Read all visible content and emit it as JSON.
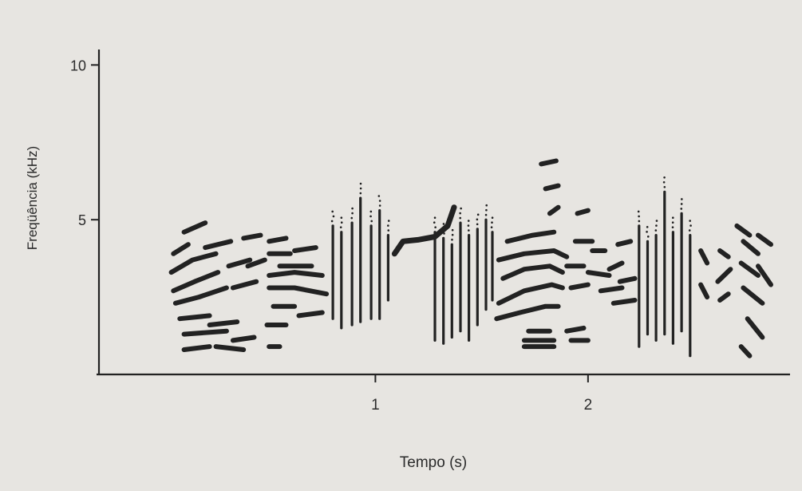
{
  "chart_data": {
    "type": "scatter",
    "title": "",
    "xlabel": "Tempo (s)",
    "ylabel": "Freqüência (kHz)",
    "xlim": [
      -0.3,
      2.95
    ],
    "ylim": [
      0,
      10.5
    ],
    "x_ticks": [
      {
        "value": 1,
        "label": "1"
      },
      {
        "value": 2,
        "label": "2"
      }
    ],
    "y_ticks": [
      {
        "value": 5,
        "label": "5"
      },
      {
        "value": 10,
        "label": "10"
      }
    ],
    "grid": false,
    "ink_color": "#222222",
    "background_color": "#e7e5e1",
    "series": [
      {
        "segments": [
          [
            [
              0.05,
              3.9
            ],
            [
              0.12,
              4.2
            ]
          ],
          [
            [
              0.04,
              3.3
            ],
            [
              0.14,
              3.7
            ],
            [
              0.25,
              3.9
            ]
          ],
          [
            [
              0.05,
              2.7
            ],
            [
              0.15,
              3.0
            ],
            [
              0.26,
              3.3
            ]
          ],
          [
            [
              0.06,
              2.3
            ],
            [
              0.17,
              2.5
            ],
            [
              0.3,
              2.8
            ]
          ],
          [
            [
              0.1,
              4.6
            ],
            [
              0.2,
              4.9
            ]
          ],
          [
            [
              0.2,
              4.1
            ],
            [
              0.32,
              4.3
            ]
          ],
          [
            [
              0.31,
              3.5
            ],
            [
              0.41,
              3.7
            ]
          ],
          [
            [
              0.33,
              2.8
            ],
            [
              0.44,
              3.0
            ]
          ],
          [
            [
              0.38,
              4.4
            ],
            [
              0.46,
              4.5
            ]
          ],
          [
            [
              0.4,
              3.5
            ],
            [
              0.48,
              3.7
            ]
          ],
          [
            [
              0.5,
              4.3
            ],
            [
              0.58,
              4.4
            ]
          ],
          [
            [
              0.5,
              3.9
            ],
            [
              0.6,
              3.9
            ]
          ],
          [
            [
              0.5,
              3.2
            ],
            [
              0.62,
              3.3
            ],
            [
              0.75,
              3.2
            ]
          ],
          [
            [
              0.5,
              2.8
            ],
            [
              0.62,
              2.8
            ],
            [
              0.77,
              2.6
            ]
          ],
          [
            [
              0.52,
              2.2
            ],
            [
              0.62,
              2.2
            ]
          ],
          [
            [
              0.55,
              3.5
            ],
            [
              0.7,
              3.5
            ]
          ],
          [
            [
              0.62,
              4.0
            ],
            [
              0.72,
              4.1
            ]
          ],
          [
            [
              0.64,
              1.9
            ],
            [
              0.75,
              2.0
            ]
          ],
          [
            [
              0.08,
              1.8
            ],
            [
              0.22,
              1.9
            ]
          ],
          [
            [
              0.1,
              1.3
            ],
            [
              0.3,
              1.4
            ]
          ],
          [
            [
              0.1,
              0.8
            ],
            [
              0.22,
              0.9
            ]
          ],
          [
            [
              0.22,
              1.6
            ],
            [
              0.35,
              1.7
            ]
          ],
          [
            [
              0.25,
              0.9
            ],
            [
              0.38,
              0.8
            ]
          ],
          [
            [
              0.33,
              1.1
            ],
            [
              0.43,
              1.2
            ]
          ],
          [
            [
              0.49,
              1.6
            ],
            [
              0.58,
              1.6
            ]
          ],
          [
            [
              0.5,
              0.9
            ],
            [
              0.55,
              0.9
            ]
          ]
        ]
      },
      {
        "segments": [
          [
            [
              0.8,
              4.8
            ],
            [
              0.8,
              1.8
            ]
          ],
          [
            [
              0.84,
              4.6
            ],
            [
              0.84,
              1.5
            ]
          ],
          [
            [
              0.89,
              4.9
            ],
            [
              0.89,
              1.6
            ]
          ],
          [
            [
              0.93,
              5.7
            ],
            [
              0.93,
              1.7
            ]
          ],
          [
            [
              0.98,
              4.8
            ],
            [
              0.98,
              1.8
            ]
          ],
          [
            [
              1.02,
              5.3
            ],
            [
              1.02,
              1.8
            ]
          ],
          [
            [
              1.06,
              4.5
            ],
            [
              1.06,
              2.4
            ]
          ]
        ]
      },
      {
        "segments": [
          [
            [
              1.09,
              3.9
            ],
            [
              1.13,
              4.3
            ],
            [
              1.2,
              4.35
            ],
            [
              1.28,
              4.45
            ],
            [
              1.34,
              4.8
            ],
            [
              1.37,
              5.4
            ]
          ]
        ]
      },
      {
        "segments": [
          [
            [
              1.28,
              4.6
            ],
            [
              1.28,
              1.1
            ]
          ],
          [
            [
              1.32,
              4.4
            ],
            [
              1.32,
              1.0
            ]
          ],
          [
            [
              1.36,
              4.2
            ],
            [
              1.36,
              1.2
            ]
          ],
          [
            [
              1.4,
              4.9
            ],
            [
              1.4,
              1.4
            ]
          ],
          [
            [
              1.44,
              4.5
            ],
            [
              1.44,
              1.1
            ]
          ],
          [
            [
              1.48,
              4.7
            ],
            [
              1.48,
              1.6
            ]
          ],
          [
            [
              1.52,
              5.0
            ],
            [
              1.52,
              2.1
            ]
          ],
          [
            [
              1.55,
              4.6
            ],
            [
              1.55,
              2.4
            ]
          ]
        ]
      },
      {
        "segments": [
          [
            [
              1.6,
              3.1
            ],
            [
              1.7,
              3.4
            ],
            [
              1.82,
              3.5
            ],
            [
              1.88,
              3.3
            ]
          ],
          [
            [
              1.58,
              3.7
            ],
            [
              1.7,
              3.9
            ],
            [
              1.84,
              4.0
            ],
            [
              1.9,
              3.8
            ]
          ],
          [
            [
              1.58,
              2.3
            ],
            [
              1.7,
              2.7
            ],
            [
              1.83,
              2.9
            ],
            [
              1.88,
              2.8
            ]
          ],
          [
            [
              1.57,
              1.8
            ],
            [
              1.68,
              2.0
            ],
            [
              1.8,
              2.2
            ],
            [
              1.86,
              2.2
            ]
          ],
          [
            [
              1.62,
              4.3
            ],
            [
              1.74,
              4.5
            ],
            [
              1.84,
              4.6
            ]
          ],
          [
            [
              1.9,
              3.5
            ],
            [
              1.98,
              3.5
            ]
          ],
          [
            [
              1.92,
              2.8
            ],
            [
              2.0,
              2.9
            ]
          ],
          [
            [
              1.94,
              4.3
            ],
            [
              2.02,
              4.3
            ]
          ],
          [
            [
              1.72,
              1.4
            ],
            [
              1.82,
              1.4
            ]
          ],
          [
            [
              1.7,
              0.9
            ],
            [
              1.84,
              0.9
            ]
          ],
          [
            [
              1.7,
              1.1
            ],
            [
              1.84,
              1.1
            ]
          ],
          [
            [
              1.78,
              6.8
            ],
            [
              1.85,
              6.9
            ]
          ],
          [
            [
              1.8,
              6.0
            ],
            [
              1.86,
              6.1
            ]
          ],
          [
            [
              1.82,
              5.2
            ],
            [
              1.86,
              5.4
            ]
          ],
          [
            [
              1.9,
              1.4
            ],
            [
              1.98,
              1.5
            ]
          ],
          [
            [
              1.92,
              1.1
            ],
            [
              2.0,
              1.1
            ]
          ],
          [
            [
              1.95,
              5.2
            ],
            [
              2.0,
              5.3
            ]
          ],
          [
            [
              2.02,
              4.0
            ],
            [
              2.08,
              4.0
            ]
          ],
          [
            [
              2.0,
              3.3
            ],
            [
              2.1,
              3.2
            ]
          ],
          [
            [
              2.06,
              2.7
            ],
            [
              2.16,
              2.8
            ]
          ],
          [
            [
              2.1,
              3.4
            ],
            [
              2.16,
              3.6
            ]
          ],
          [
            [
              2.12,
              2.3
            ],
            [
              2.22,
              2.4
            ]
          ],
          [
            [
              2.14,
              4.2
            ],
            [
              2.2,
              4.3
            ]
          ],
          [
            [
              2.15,
              3.0
            ],
            [
              2.22,
              3.1
            ]
          ]
        ]
      },
      {
        "segments": [
          [
            [
              2.24,
              4.8
            ],
            [
              2.24,
              0.9
            ]
          ],
          [
            [
              2.28,
              4.3
            ],
            [
              2.28,
              1.3
            ]
          ],
          [
            [
              2.32,
              4.5
            ],
            [
              2.32,
              1.1
            ]
          ],
          [
            [
              2.36,
              5.9
            ],
            [
              2.36,
              1.3
            ]
          ],
          [
            [
              2.4,
              4.6
            ],
            [
              2.4,
              1.0
            ]
          ],
          [
            [
              2.44,
              5.2
            ],
            [
              2.44,
              1.4
            ]
          ],
          [
            [
              2.48,
              4.5
            ],
            [
              2.48,
              0.6
            ]
          ]
        ]
      },
      {
        "segments": [
          [
            [
              2.53,
              4.0
            ],
            [
              2.56,
              3.6
            ]
          ],
          [
            [
              2.53,
              2.9
            ],
            [
              2.56,
              2.5
            ]
          ],
          [
            [
              2.62,
              4.0
            ],
            [
              2.66,
              3.8
            ]
          ],
          [
            [
              2.61,
              3.0
            ],
            [
              2.67,
              3.4
            ]
          ],
          [
            [
              2.62,
              2.4
            ],
            [
              2.66,
              2.6
            ]
          ],
          [
            [
              2.7,
              4.8
            ],
            [
              2.76,
              4.5
            ]
          ],
          [
            [
              2.73,
              4.3
            ],
            [
              2.8,
              3.9
            ]
          ],
          [
            [
              2.72,
              3.6
            ],
            [
              2.8,
              3.2
            ]
          ],
          [
            [
              2.73,
              2.8
            ],
            [
              2.82,
              2.3
            ]
          ],
          [
            [
              2.75,
              1.8
            ],
            [
              2.82,
              1.2
            ]
          ],
          [
            [
              2.72,
              0.9
            ],
            [
              2.76,
              0.6
            ]
          ],
          [
            [
              2.8,
              4.5
            ],
            [
              2.86,
              4.2
            ]
          ],
          [
            [
              2.8,
              3.5
            ],
            [
              2.86,
              2.9
            ]
          ]
        ]
      }
    ]
  }
}
